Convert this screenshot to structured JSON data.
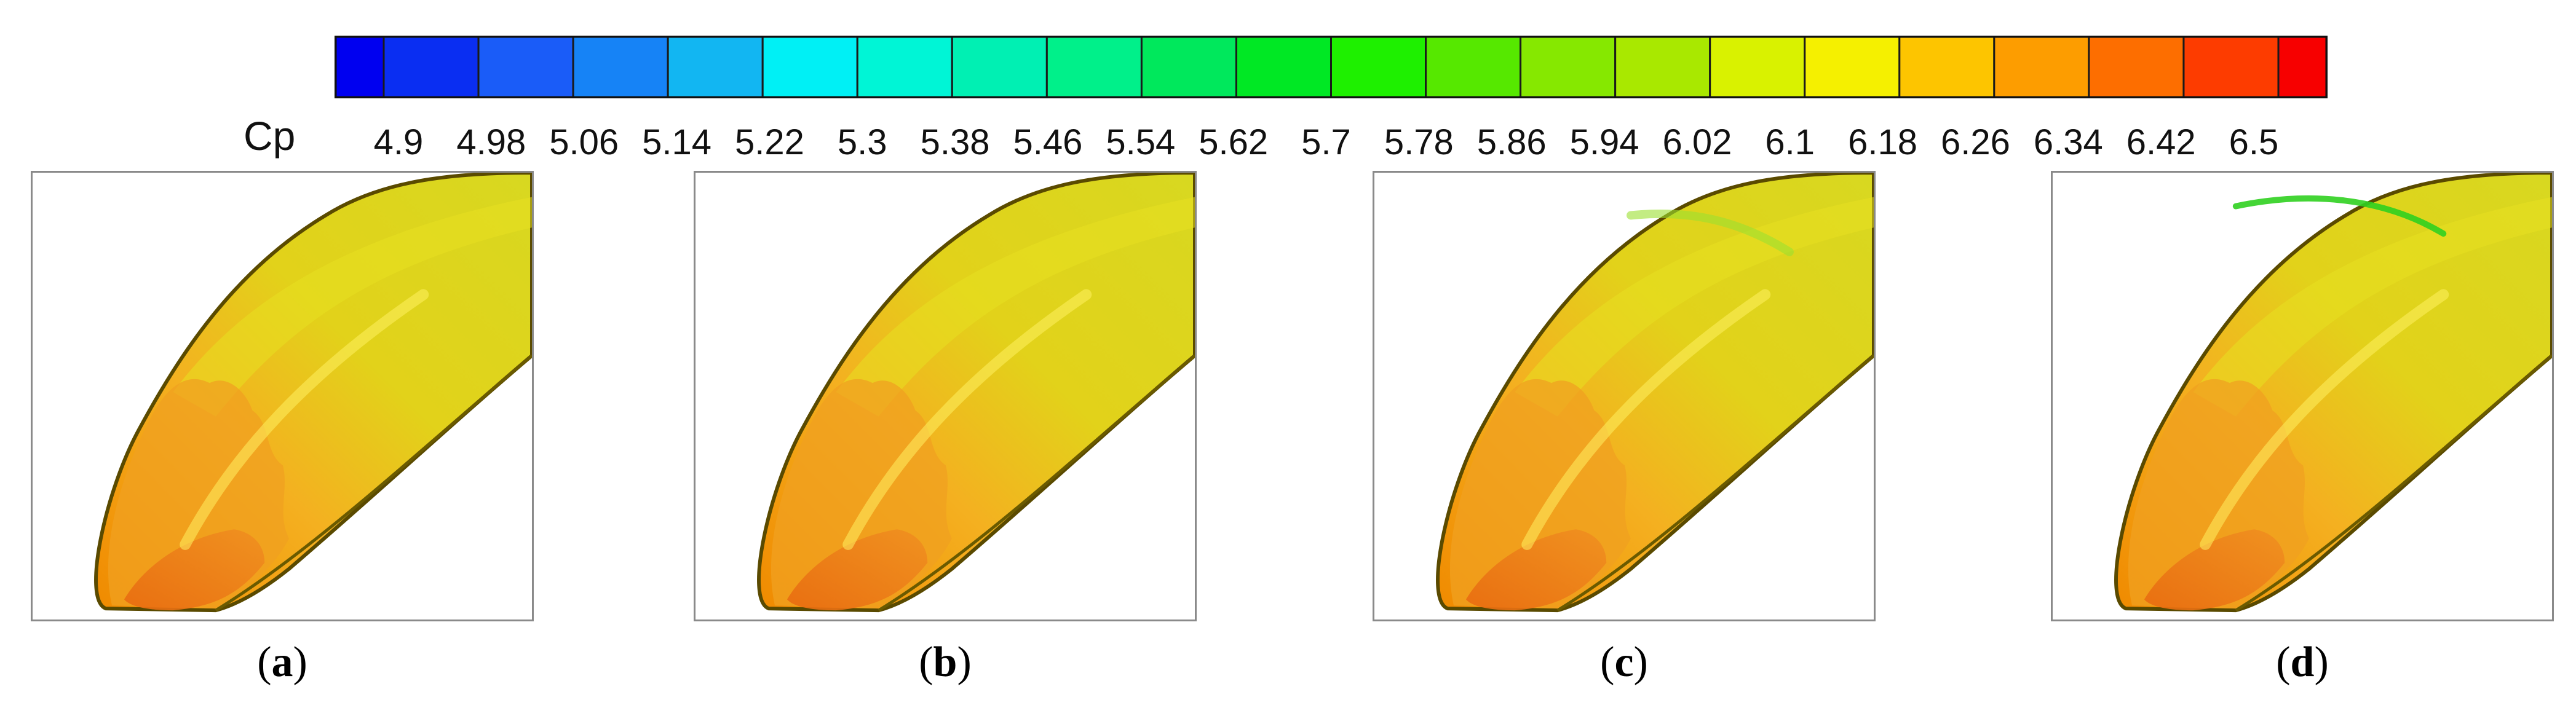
{
  "colorbar": {
    "variable": "Cp",
    "ticks": [
      "4.9",
      "4.98",
      "5.06",
      "5.14",
      "5.22",
      "5.3",
      "5.38",
      "5.46",
      "5.54",
      "5.62",
      "5.7",
      "5.78",
      "5.86",
      "5.94",
      "6.02",
      "6.1",
      "6.18",
      "6.26",
      "6.34",
      "6.42",
      "6.5"
    ],
    "colors": [
      "#0000f0",
      "#0a2ef2",
      "#1a5cf8",
      "#1683f6",
      "#12b6f2",
      "#00f0f5",
      "#00f5d6",
      "#00f0b3",
      "#00f08a",
      "#00e85c",
      "#00e824",
      "#1ef000",
      "#56e800",
      "#86e800",
      "#a9e800",
      "#d9f200",
      "#f5f000",
      "#fdc500",
      "#fd9d00",
      "#fd6e00",
      "#fd3c00",
      "#f70000"
    ]
  },
  "panels": [
    {
      "id": "a",
      "label": "a"
    },
    {
      "id": "b",
      "label": "b"
    },
    {
      "id": "c",
      "label": "c"
    },
    {
      "id": "d",
      "label": "d"
    }
  ]
}
